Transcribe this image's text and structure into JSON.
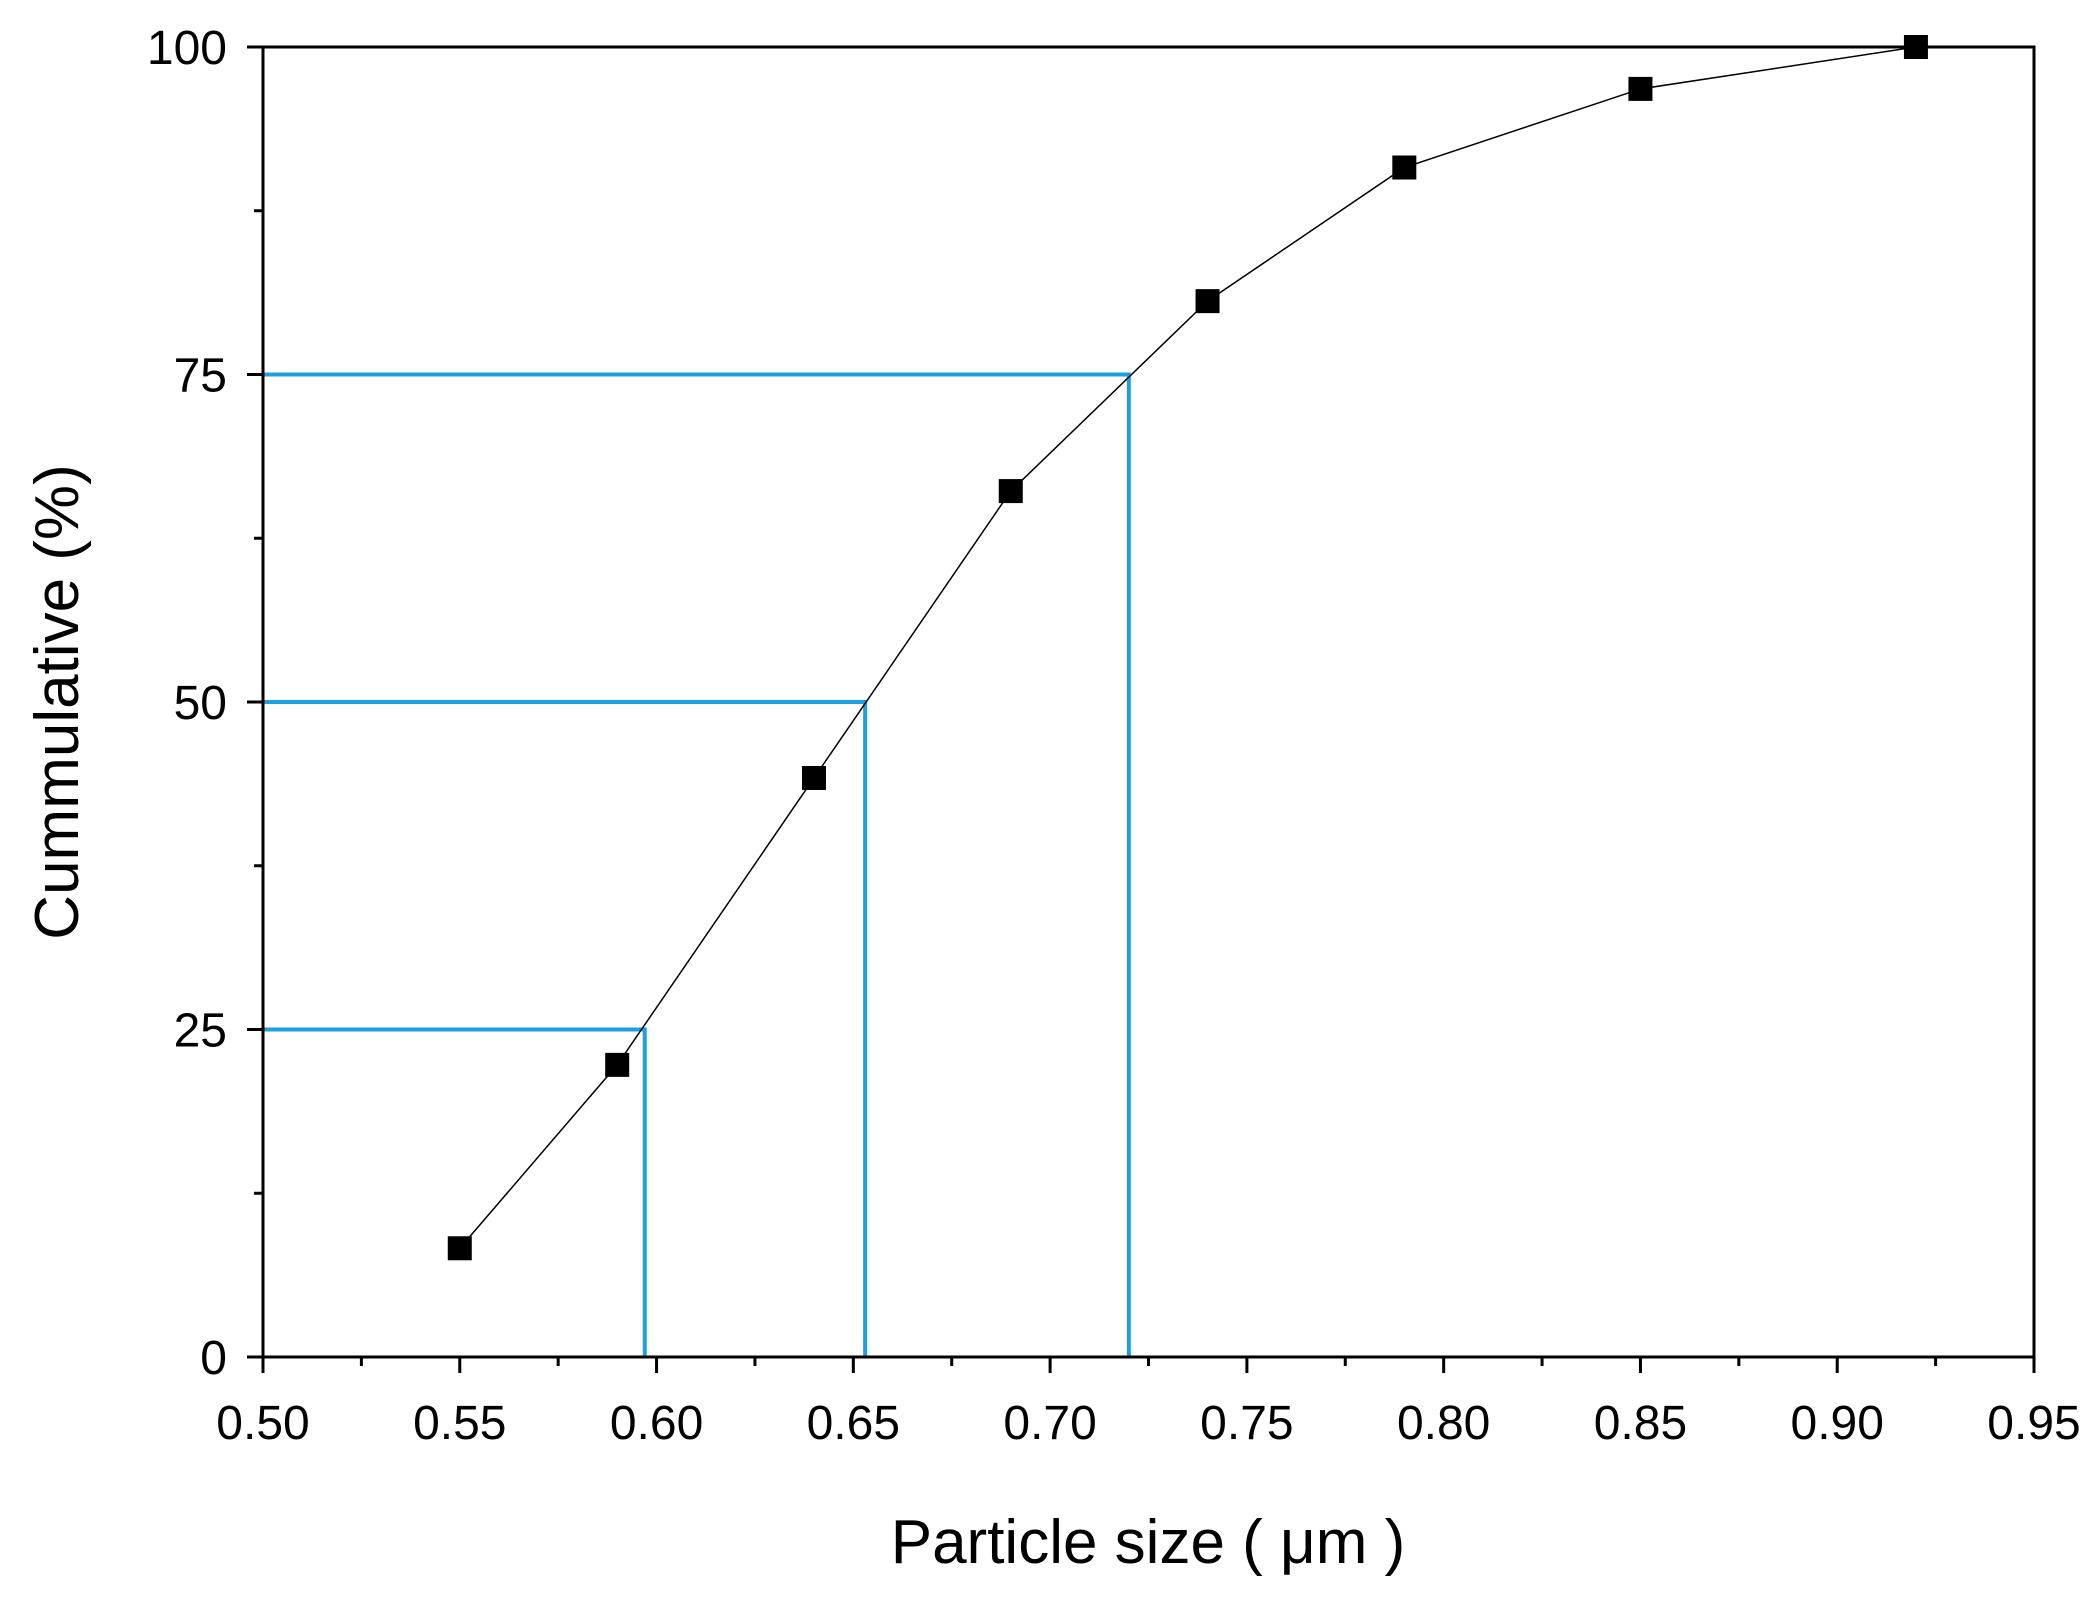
{
  "chart_data": {
    "type": "line",
    "x_label": "Particle size ( μm )",
    "y_label": "Cummulative (%)",
    "x": [
      0.55,
      0.59,
      0.64,
      0.69,
      0.74,
      0.79,
      0.85,
      0.92
    ],
    "series": [
      {
        "color": "#000000",
        "values": [
          8.3,
          22.3,
          44.2,
          66.1,
          80.6,
          90.8,
          96.8,
          100
        ]
      }
    ],
    "xlim": [
      0.5,
      0.95
    ],
    "ylim": [
      0,
      100
    ],
    "xticks": [
      {
        "value": 0.5,
        "label": "0.50"
      },
      {
        "value": 0.55,
        "label": "0.55"
      },
      {
        "value": 0.6,
        "label": "0.60"
      },
      {
        "value": 0.65,
        "label": "0.65"
      },
      {
        "value": 0.7,
        "label": "0.70"
      },
      {
        "value": 0.75,
        "label": "0.75"
      },
      {
        "value": 0.8,
        "label": "0.80"
      },
      {
        "value": 0.85,
        "label": "0.85"
      },
      {
        "value": 0.9,
        "label": "0.90"
      },
      {
        "value": 0.95,
        "label": "0.95"
      }
    ],
    "xminorticks": [
      0.525,
      0.575,
      0.625,
      0.675,
      0.725,
      0.775,
      0.825,
      0.875,
      0.925
    ],
    "yticks": [
      0,
      25,
      50,
      75,
      100
    ],
    "yminorticks": [
      12.5,
      37.5,
      62.5,
      87.5
    ],
    "reference_lines": {
      "color": "#1ea0e0",
      "points": [
        {
          "x": 0.597,
          "y": 25
        },
        {
          "x": 0.653,
          "y": 50
        },
        {
          "x": 0.72,
          "y": 75
        }
      ]
    }
  }
}
